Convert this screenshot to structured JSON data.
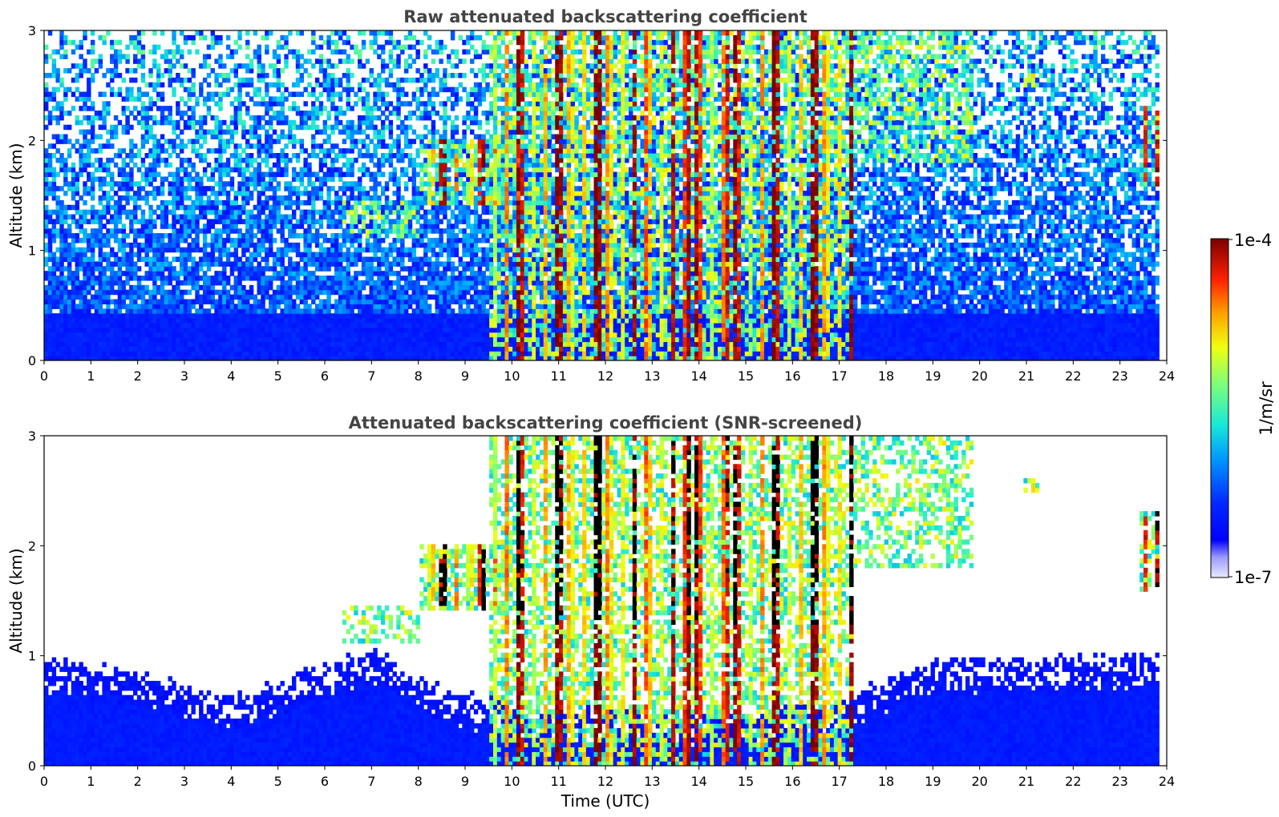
{
  "chart_data": [
    {
      "type": "heatmap",
      "title": "Raw attenuated backscattering coefficient",
      "xlabel": "",
      "ylabel": "Altitude (km)",
      "xlim": [
        0,
        24
      ],
      "ylim": [
        0,
        3
      ],
      "xticks": [
        "0",
        "1",
        "2",
        "3",
        "4",
        "5",
        "6",
        "7",
        "8",
        "9",
        "10",
        "11",
        "12",
        "13",
        "14",
        "15",
        "16",
        "17",
        "18",
        "19",
        "20",
        "21",
        "22",
        "23",
        "24"
      ],
      "yticks": [
        "0",
        "1",
        "2",
        "3"
      ],
      "screened": false,
      "data_end_time": 23.8,
      "clouds": [
        {
          "t_start": 6.4,
          "t_end": 8.0,
          "alt_base": 1.1,
          "alt_top": 1.45,
          "intensity": "moderate"
        },
        {
          "t_start": 8.0,
          "t_end": 10.2,
          "alt_base": 1.4,
          "alt_top": 2.0,
          "intensity": "high"
        },
        {
          "t_start": 9.5,
          "t_end": 13.5,
          "alt_base": 0.0,
          "alt_top": 3.0,
          "intensity": "high"
        },
        {
          "t_start": 13.5,
          "t_end": 17.3,
          "alt_base": 0.0,
          "alt_top": 3.0,
          "intensity": "high"
        },
        {
          "t_start": 17.3,
          "t_end": 19.9,
          "alt_base": 1.8,
          "alt_top": 3.0,
          "intensity": "moderate"
        },
        {
          "t_start": 20.9,
          "t_end": 21.3,
          "alt_base": 2.5,
          "alt_top": 2.6,
          "intensity": "high"
        },
        {
          "t_start": 23.4,
          "t_end": 23.8,
          "alt_base": 1.6,
          "alt_top": 2.3,
          "intensity": "high"
        }
      ]
    },
    {
      "type": "heatmap",
      "title": "Attenuated backscattering coefficient (SNR-screened)",
      "xlabel": "Time (UTC)",
      "ylabel": "Altitude (km)",
      "xlim": [
        0,
        24
      ],
      "ylim": [
        0,
        3
      ],
      "xticks": [
        "0",
        "1",
        "2",
        "3",
        "4",
        "5",
        "6",
        "7",
        "8",
        "9",
        "10",
        "11",
        "12",
        "13",
        "14",
        "15",
        "16",
        "17",
        "18",
        "19",
        "20",
        "21",
        "22",
        "23",
        "24"
      ],
      "yticks": [
        "0",
        "1",
        "2",
        "3"
      ],
      "screened": true,
      "data_end_time": 23.8,
      "boundary_layer_top": [
        {
          "t": 0,
          "alt": 0.95
        },
        {
          "t": 2,
          "alt": 0.85
        },
        {
          "t": 4,
          "alt": 0.6
        },
        {
          "t": 5,
          "alt": 0.75
        },
        {
          "t": 6,
          "alt": 0.9
        },
        {
          "t": 7,
          "alt": 1.05
        },
        {
          "t": 8,
          "alt": 0.8
        },
        {
          "t": 10,
          "alt": 0.5
        },
        {
          "t": 12,
          "alt": 0.5
        },
        {
          "t": 15,
          "alt": 0.45
        },
        {
          "t": 17,
          "alt": 0.6
        },
        {
          "t": 19,
          "alt": 0.95
        },
        {
          "t": 23.8,
          "alt": 1.0
        }
      ]
    }
  ],
  "colorbar": {
    "label": "1/m/sr",
    "max_label": "1e-4",
    "min_label": "1e-7",
    "scale": "log",
    "min": 1e-07,
    "max": 0.0001,
    "colormap": "jet"
  }
}
